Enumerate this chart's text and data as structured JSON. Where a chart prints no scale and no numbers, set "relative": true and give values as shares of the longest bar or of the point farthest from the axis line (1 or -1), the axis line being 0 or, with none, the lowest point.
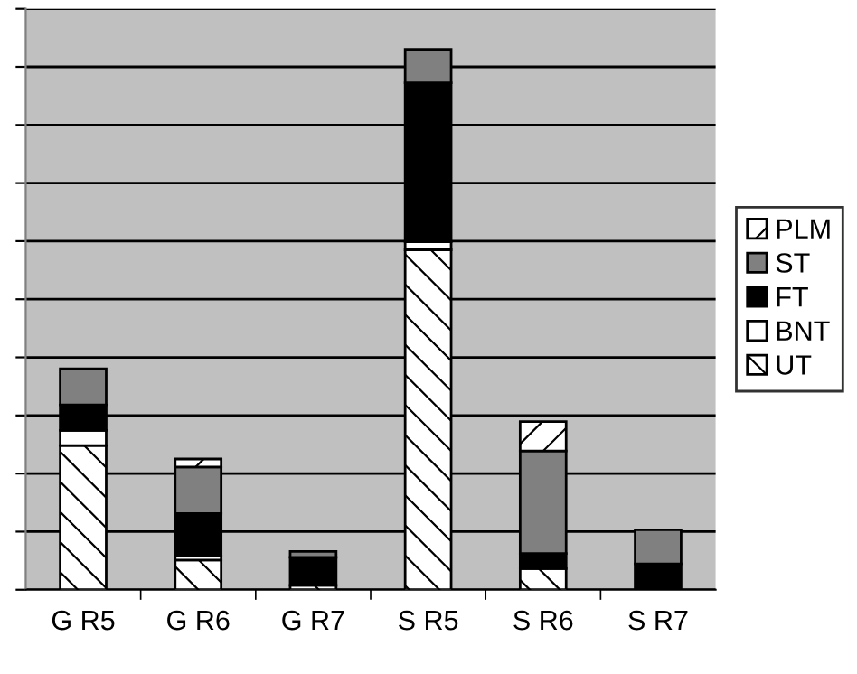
{
  "chart_data": {
    "type": "bar",
    "stacked": true,
    "relative": true,
    "categories": [
      "G R5",
      "G R6",
      "G R7",
      "S R5",
      "S R6",
      "S R7"
    ],
    "series": [
      {
        "name": "UT",
        "color": "#000000",
        "values": [
          0.267,
          0.055,
          0.008,
          0.629,
          0.039,
          null
        ]
      },
      {
        "name": "BNT",
        "color": "#ffffff",
        "values": [
          0.028,
          0.007,
          null,
          0.015,
          null,
          null
        ]
      },
      {
        "name": "FT",
        "color": "#000000",
        "values": [
          0.047,
          0.079,
          0.052,
          0.294,
          0.028,
          0.048
        ]
      },
      {
        "name": "ST",
        "color": "#808080",
        "values": [
          0.067,
          0.086,
          0.011,
          0.062,
          0.19,
          0.063
        ]
      },
      {
        "name": "PLM",
        "color": "#000000",
        "values": [
          null,
          0.015,
          null,
          null,
          0.054,
          null
        ]
      }
    ],
    "grid": "y",
    "legend": "right"
  }
}
